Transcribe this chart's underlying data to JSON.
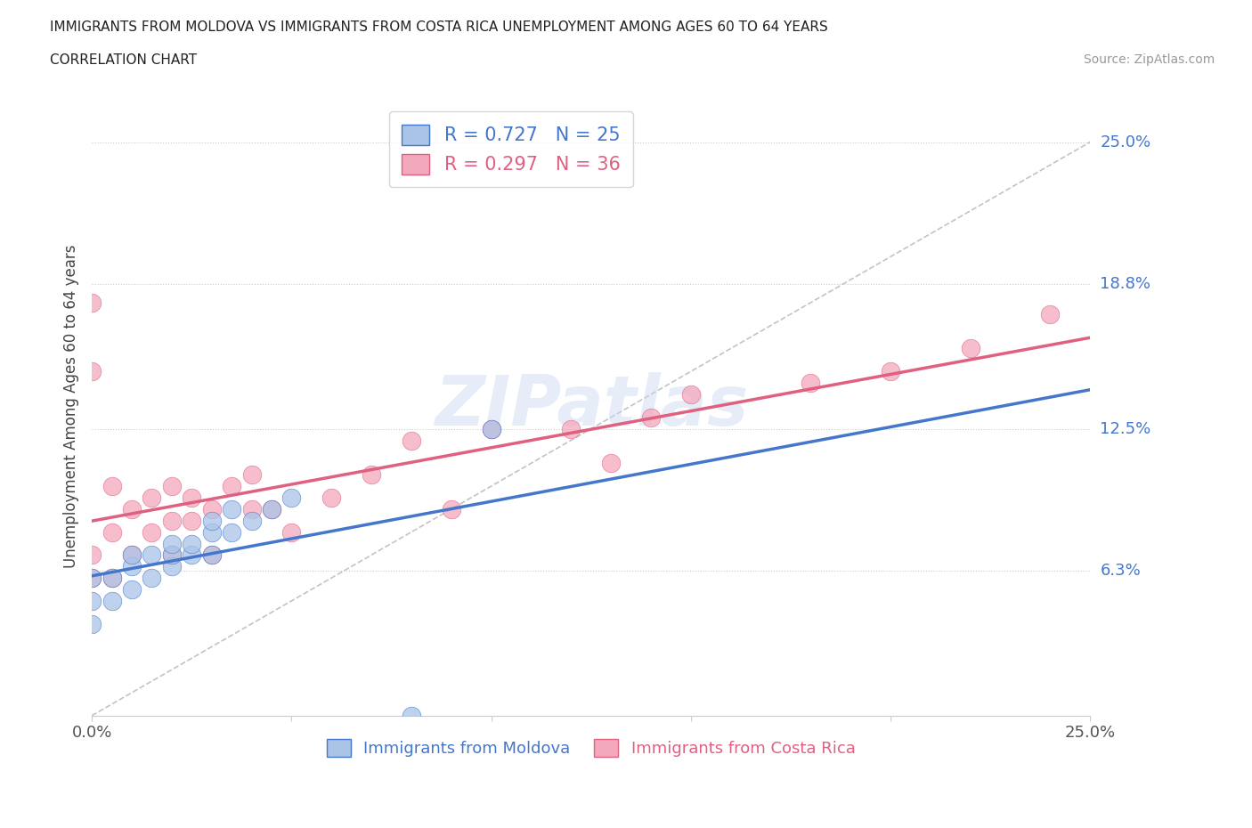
{
  "title_line1": "IMMIGRANTS FROM MOLDOVA VS IMMIGRANTS FROM COSTA RICA UNEMPLOYMENT AMONG AGES 60 TO 64 YEARS",
  "title_line2": "CORRELATION CHART",
  "source_text": "Source: ZipAtlas.com",
  "ylabel": "Unemployment Among Ages 60 to 64 years",
  "x_min": 0.0,
  "x_max": 0.25,
  "y_min": 0.0,
  "y_max": 0.27,
  "y_tick_labels_right": [
    {
      "val": 0.063,
      "label": "6.3%"
    },
    {
      "val": 0.125,
      "label": "12.5%"
    },
    {
      "val": 0.188,
      "label": "18.8%"
    },
    {
      "val": 0.25,
      "label": "25.0%"
    }
  ],
  "gridline_vals": [
    0.063,
    0.125,
    0.188,
    0.25
  ],
  "moldova_color": "#aac4e8",
  "costa_rica_color": "#f4a8bc",
  "moldova_line_color": "#4477cc",
  "costa_rica_line_color": "#e06080",
  "legend_label_moldova": "R = 0.727   N = 25",
  "legend_label_costa_rica": "R = 0.297   N = 36",
  "legend_bottom_moldova": "Immigrants from Moldova",
  "legend_bottom_costa_rica": "Immigrants from Costa Rica",
  "watermark": "ZIPatlas",
  "moldova_x": [
    0.0,
    0.0,
    0.0,
    0.005,
    0.005,
    0.01,
    0.01,
    0.01,
    0.015,
    0.015,
    0.02,
    0.02,
    0.02,
    0.025,
    0.025,
    0.03,
    0.03,
    0.03,
    0.035,
    0.035,
    0.04,
    0.045,
    0.05,
    0.08,
    0.1
  ],
  "moldova_y": [
    0.04,
    0.05,
    0.06,
    0.05,
    0.06,
    0.055,
    0.065,
    0.07,
    0.06,
    0.07,
    0.065,
    0.07,
    0.075,
    0.07,
    0.075,
    0.07,
    0.08,
    0.085,
    0.08,
    0.09,
    0.085,
    0.09,
    0.095,
    0.0,
    0.125
  ],
  "costa_rica_x": [
    0.0,
    0.0,
    0.0,
    0.0,
    0.005,
    0.005,
    0.005,
    0.01,
    0.01,
    0.015,
    0.015,
    0.02,
    0.02,
    0.02,
    0.025,
    0.025,
    0.03,
    0.03,
    0.035,
    0.04,
    0.04,
    0.045,
    0.05,
    0.06,
    0.07,
    0.08,
    0.09,
    0.1,
    0.12,
    0.13,
    0.14,
    0.15,
    0.18,
    0.2,
    0.22,
    0.24
  ],
  "costa_rica_y": [
    0.06,
    0.07,
    0.15,
    0.18,
    0.06,
    0.08,
    0.1,
    0.07,
    0.09,
    0.08,
    0.095,
    0.07,
    0.085,
    0.1,
    0.085,
    0.095,
    0.07,
    0.09,
    0.1,
    0.09,
    0.105,
    0.09,
    0.08,
    0.095,
    0.105,
    0.12,
    0.09,
    0.125,
    0.125,
    0.11,
    0.13,
    0.14,
    0.145,
    0.15,
    0.16,
    0.175
  ]
}
